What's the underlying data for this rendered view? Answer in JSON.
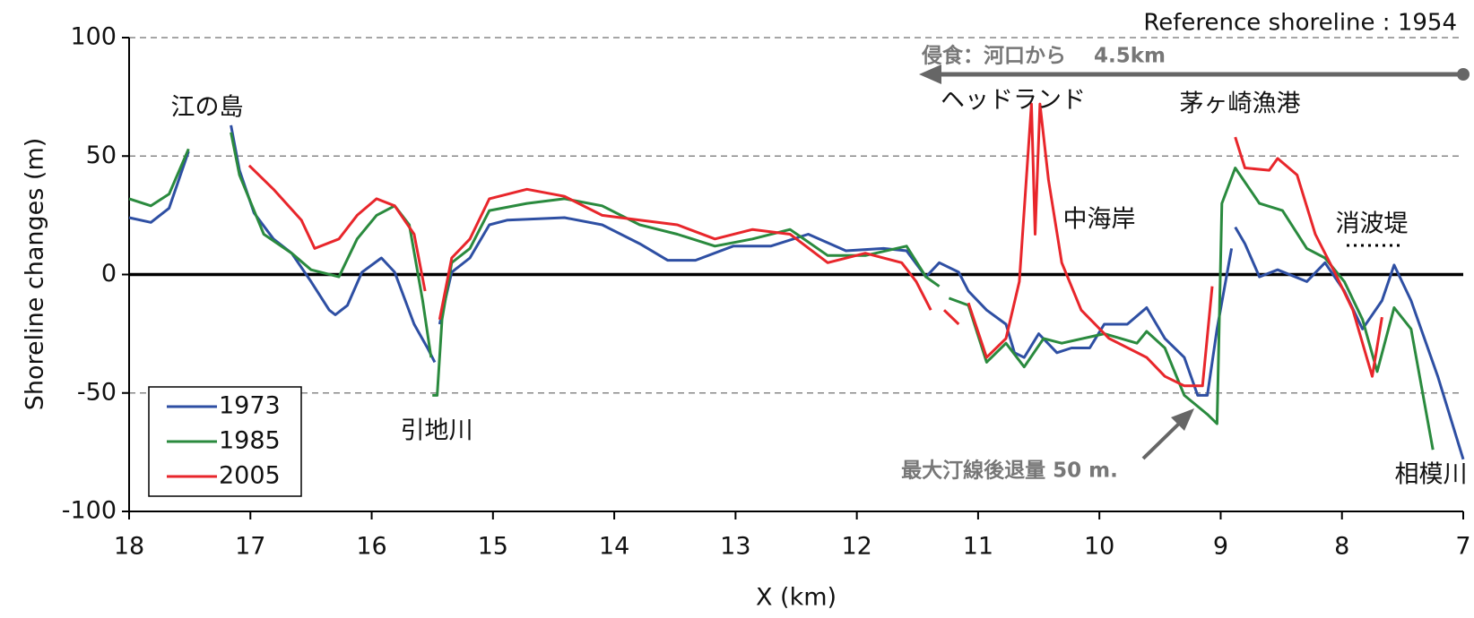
{
  "chart_data": {
    "type": "line",
    "xlabel": "X (km)",
    "ylabel": "Shoreline changes (m)",
    "xlim": [
      18,
      7
    ],
    "xticks": [
      18,
      17,
      16,
      15,
      14,
      13,
      12,
      11,
      10,
      9,
      8,
      7
    ],
    "ylim": [
      -100,
      100
    ],
    "yticks": [
      -100,
      -50,
      0,
      50,
      100
    ],
    "grid": true,
    "legend": "lower left",
    "annotations": [
      "Reference shoreline : 1954",
      "侵食：河口から",
      "4.5km",
      "江の島",
      "引地川",
      "ヘッドランド",
      "中海岸",
      "茅ヶ崎漁港",
      "消波堤",
      "相模川",
      "最大汀線後退量 50 m."
    ],
    "series": [
      {
        "name": "1973",
        "color": "#2e4fa3",
        "x": [
          18,
          17.82,
          17.67,
          17.51,
          null,
          17.16,
          17.09,
          16.97,
          16.81,
          16.66,
          16.5,
          16.35,
          16.3,
          16.2,
          16.08,
          15.92,
          15.81,
          15.65,
          15.54,
          15.48,
          null,
          15.44,
          15.34,
          15.19,
          15.03,
          14.88,
          14.41,
          14.1,
          13.79,
          13.56,
          13.33,
          13.02,
          12.71,
          12.4,
          12.09,
          11.78,
          11.59,
          11.43,
          11.32,
          11.16,
          11.08,
          10.93,
          10.77,
          10.7,
          10.62,
          10.5,
          10.35,
          10.23,
          10.08,
          9.96,
          9.77,
          9.61,
          9.46,
          9.3,
          9.19,
          9.11,
          9.03,
          8.91,
          null,
          8.88,
          8.8,
          8.68,
          8.53,
          8.29,
          8.14,
          7.98,
          7.83,
          7.67,
          7.57,
          7.43,
          7.21,
          7
        ],
        "values": [
          24,
          22,
          28,
          52,
          null,
          63,
          44,
          26,
          15,
          9,
          -3,
          -15,
          -17,
          -13,
          1,
          7,
          1,
          -21,
          -31,
          -37,
          null,
          -21,
          1,
          7,
          21,
          23,
          24,
          21,
          13,
          6,
          6,
          12,
          12,
          17,
          10,
          11,
          10,
          -1,
          5,
          1,
          -7,
          -15,
          -21,
          -33,
          -35,
          -25,
          -33,
          -31,
          -31,
          -21,
          -21,
          -14,
          -27,
          -35,
          -51,
          -51,
          -23,
          11,
          null,
          20,
          13,
          -1,
          2,
          -3,
          5,
          -7,
          -23,
          -11,
          4,
          -11,
          -43,
          -78
        ]
      },
      {
        "name": "1985",
        "color": "#2a8a3e",
        "x": [
          18,
          17.82,
          17.67,
          17.51,
          null,
          17.16,
          17.09,
          16.89,
          16.66,
          16.5,
          16.27,
          16.12,
          15.96,
          15.81,
          15.69,
          15.58,
          15.51,
          null,
          15.5,
          15.46,
          15.42,
          15.34,
          15.19,
          15.03,
          14.72,
          14.41,
          14.1,
          13.79,
          13.48,
          13.17,
          12.86,
          12.55,
          12.24,
          11.93,
          11.59,
          11.43,
          11.32,
          null,
          11.24,
          11.08,
          10.93,
          10.77,
          10.62,
          10.46,
          10.31,
          9.96,
          9.69,
          9.61,
          9.46,
          9.3,
          9.11,
          9.03,
          8.99,
          8.88,
          8.68,
          8.49,
          8.29,
          8.14,
          7.98,
          7.83,
          7.71,
          7.57,
          7.43,
          7.25
        ],
        "values": [
          32,
          29,
          34,
          53,
          null,
          60,
          42,
          17,
          9,
          2,
          -1,
          15,
          25,
          29,
          21,
          -11,
          -35,
          null,
          -51,
          -51,
          -19,
          5,
          11,
          27,
          30,
          32,
          29,
          21,
          17,
          12,
          15,
          19,
          8,
          8,
          12,
          -1,
          -5,
          null,
          -10,
          -13,
          -37,
          -29,
          -39,
          -27,
          -29,
          -25,
          -29,
          -24,
          -31,
          -51,
          -59,
          -63,
          30,
          45,
          30,
          27,
          11,
          7,
          -3,
          -19,
          -41,
          -14,
          -23,
          -74
        ]
      },
      {
        "name": "2005",
        "color": "#e8262b",
        "x": [
          17.01,
          16.81,
          16.58,
          16.47,
          16.27,
          16.12,
          15.96,
          15.81,
          15.65,
          15.56,
          null,
          15.44,
          15.34,
          15.19,
          15.03,
          14.72,
          14.41,
          14.1,
          13.79,
          13.48,
          13.17,
          12.86,
          12.55,
          12.24,
          11.93,
          11.63,
          11.51,
          11.39,
          null,
          11.28,
          11.16,
          null,
          11.08,
          10.93,
          10.77,
          10.66,
          10.56,
          10.53,
          10.49,
          10.42,
          10.31,
          10.15,
          9.92,
          9.61,
          9.46,
          9.3,
          9.15,
          9.07,
          null,
          8.88,
          8.8,
          8.6,
          8.53,
          8.37,
          8.22,
          8.06,
          7.91,
          7.75,
          7.67
        ],
        "values": [
          46,
          36,
          23,
          11,
          15,
          25,
          32,
          29,
          17,
          -7,
          null,
          -19,
          7,
          15,
          32,
          36,
          33,
          25,
          23,
          21,
          15,
          19,
          17,
          5,
          9,
          5,
          -3,
          -15,
          null,
          -15,
          -21,
          null,
          -12,
          -35,
          -27,
          -3,
          72,
          17,
          72,
          40,
          5,
          -15,
          -27,
          -35,
          -43,
          -47,
          -47,
          -5,
          null,
          58,
          45,
          44,
          49,
          42,
          17,
          1,
          -15,
          -43,
          -18
        ]
      }
    ]
  }
}
